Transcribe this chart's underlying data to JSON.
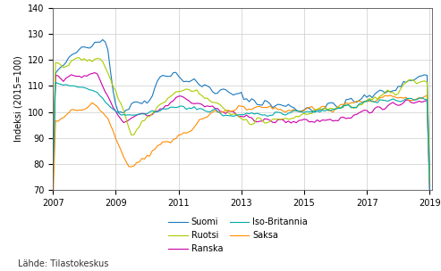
{
  "title": "",
  "ylabel": "Indeksi (2015=100)",
  "source_text": "Lähde: Tilastokeskus",
  "xlim": [
    2007.0,
    2019.08
  ],
  "ylim": [
    70,
    140
  ],
  "yticks": [
    70,
    80,
    90,
    100,
    110,
    120,
    130,
    140
  ],
  "xticks": [
    2007,
    2009,
    2011,
    2013,
    2015,
    2017,
    2019
  ],
  "colors": {
    "Suomi": "#1a7abf",
    "Ranska": "#cc00aa",
    "Saksa": "#ff8c00",
    "Ruotsi": "#aacc00",
    "Iso-Britannia": "#00aaaa"
  },
  "grid_color": "#cccccc",
  "bg_color": "#ffffff",
  "line_width": 0.8
}
